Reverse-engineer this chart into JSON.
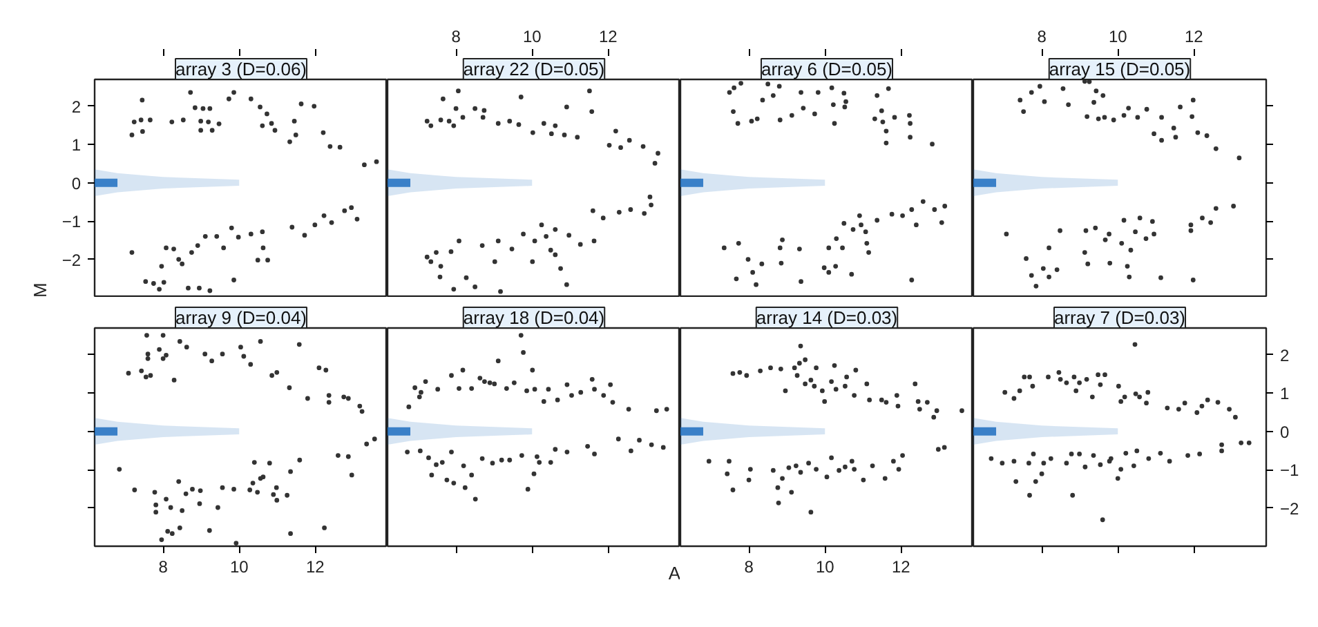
{
  "chart_data": [
    {
      "type": "scatter",
      "title": "array 3 (D=0.06)",
      "ylabel": "M",
      "xlim": [
        6.2,
        13.9
      ],
      "ylim": [
        -3,
        2.7
      ],
      "xticks": [
        8,
        10,
        12
      ],
      "yticks": [
        -2,
        -1,
        0,
        1,
        2
      ],
      "tick_labels": "y",
      "series": [
        {
          "type": "line",
          "marker": "none",
          "color": "#1f6fbf",
          "x": [
            6.2,
            6.8,
            8,
            10
          ],
          "values": [
            0,
            0,
            null,
            null
          ],
          "lower": [
            -0.35,
            -0.25,
            -0.15,
            -0.08
          ],
          "upper": [
            0.35,
            0.25,
            0.15,
            0.08
          ]
        },
        {
          "marker": "circle",
          "color": "#333333",
          "x": [
            7.18,
            7.24,
            7.45,
            7.42,
            7.66,
            7.46,
            8.23,
            8.53,
            8.72,
            8.84,
            9.05,
            9.23,
            8.99,
            9.19,
            8.99,
            9.29,
            9.47,
            9.73,
            9.86,
            10.31,
            10.55,
            10.73,
            10.61,
            10.85,
            10.94,
            11.45,
            11.63,
            11.97,
            11.49,
            11.33,
            12.21,
            12.39,
            12.65,
            13.29,
            13.61,
            7.18,
            7.96,
            8.08,
            8.28,
            8.41,
            8.5,
            7.54,
            7.75,
            8.02,
            7.9,
            8.66,
            8.95,
            9.23,
            8.75,
            8.91,
            9.11,
            9.41,
            9.59,
            9.8,
            9.98,
            10.31,
            10.61,
            10.63,
            10.49,
            10.75,
            9.86,
            11.39,
            11.72,
            11.99,
            12.23,
            12.43,
            12.77,
            13.1,
            12.95
          ],
          "values": [
            1.25,
            1.59,
            2.16,
            1.64,
            1.64,
            1.34,
            1.59,
            1.64,
            2.36,
            1.96,
            1.94,
            1.94,
            1.61,
            1.59,
            1.37,
            1.37,
            1.54,
            2.19,
            2.36,
            2.19,
            1.98,
            1.8,
            1.49,
            1.55,
            1.37,
            1.61,
            2.06,
            2.0,
            1.25,
            1.07,
            1.31,
            0.95,
            0.93,
            0.47,
            0.55,
            -1.82,
            -2.18,
            -1.7,
            -1.73,
            -2.0,
            -2.12,
            -2.58,
            -2.63,
            -2.6,
            -2.78,
            -2.75,
            -2.75,
            -2.82,
            -1.82,
            -1.64,
            -1.4,
            -1.4,
            -1.7,
            -1.18,
            -1.42,
            -1.34,
            -1.28,
            -1.7,
            -2.02,
            -2.02,
            -2.54,
            -1.16,
            -1.37,
            -1.1,
            -0.86,
            -1.04,
            -0.73,
            -0.95,
            -0.65
          ]
        }
      ]
    },
    {
      "type": "scatter",
      "title": "array 22 (D=0.05)",
      "xlim": [
        6.2,
        13.9
      ],
      "ylim": [
        -3,
        2.7
      ],
      "xticks": [
        8,
        10,
        12
      ],
      "yticks": [
        -2,
        -1,
        0,
        1,
        2
      ],
      "tick_labels": "x",
      "series": [
        {
          "type": "line",
          "marker": "none",
          "color": "#1f6fbf",
          "x": [
            6.2,
            6.8,
            8,
            10
          ],
          "values": [
            0,
            0,
            null,
            null
          ],
          "lower": [
            -0.35,
            -0.25,
            -0.15,
            -0.08
          ],
          "upper": [
            0.35,
            0.25,
            0.15,
            0.08
          ]
        },
        {
          "marker": "circle",
          "color": "#333333",
          "x": [
            7.24,
            7.34,
            7.6,
            7.66,
            7.82,
            7.94,
            8.06,
            8.0,
            8.18,
            8.5,
            8.71,
            8.74,
            9.11,
            9.41,
            9.65,
            9.71,
            10.02,
            10.31,
            10.51,
            10.61,
            10.91,
            10.85,
            11.19,
            11.51,
            11.57,
            12.03,
            12.2,
            12.33,
            12.56,
            12.92,
            13.31,
            13.23,
            7.24,
            7.34,
            7.48,
            7.6,
            7.87,
            8.08,
            7.58,
            7.94,
            8.27,
            8.5,
            8.69,
            9.02,
            9.11,
            9.17,
            9.47,
            9.77,
            10.01,
            10.07,
            10.25,
            10.37,
            10.49,
            10.61,
            10.75,
            10.91,
            10.61,
            10.97,
            11.27,
            11.63,
            11.6,
            11.87,
            12.29,
            12.59,
            12.95,
            13.13,
            13.1
          ],
          "values": [
            1.61,
            1.49,
            1.64,
            2.19,
            1.61,
            1.49,
            2.4,
            1.94,
            1.71,
            1.94,
            1.71,
            1.89,
            1.55,
            1.61,
            1.52,
            2.24,
            1.31,
            1.55,
            1.28,
            1.49,
            1.98,
            1.25,
            1.19,
            2.4,
            1.86,
            0.98,
            1.35,
            0.92,
            1.11,
            0.95,
            0.77,
            0.51,
            -1.94,
            -2.06,
            -1.82,
            -2.18,
            -1.8,
            -1.52,
            -2.46,
            -2.78,
            -2.48,
            -2.72,
            -1.64,
            -2.06,
            -1.52,
            -2.84,
            -1.73,
            -1.34,
            -2.06,
            -1.52,
            -1.1,
            -1.4,
            -1.76,
            -1.88,
            -2.24,
            -2.66,
            -1.22,
            -1.37,
            -1.61,
            -1.52,
            -0.73,
            -0.92,
            -0.77,
            -0.7,
            -0.8,
            -0.58,
            -0.37
          ]
        }
      ]
    },
    {
      "type": "scatter",
      "title": "array 6 (D=0.05)",
      "xlim": [
        6.2,
        13.9
      ],
      "ylim": [
        -3,
        2.7
      ],
      "xticks": [
        8,
        10,
        12
      ],
      "yticks": [
        -2,
        -1,
        0,
        1,
        2
      ],
      "tick_labels": false,
      "series": [
        {
          "type": "line",
          "marker": "none",
          "color": "#1f6fbf",
          "x": [
            6.2,
            6.8,
            8,
            10
          ],
          "values": [
            0,
            0,
            null,
            null
          ],
          "lower": [
            -0.35,
            -0.25,
            -0.15,
            -0.08
          ],
          "upper": [
            0.35,
            0.25,
            0.15,
            0.08
          ]
        },
        {
          "marker": "circle",
          "color": "#333333",
          "x": [
            7.49,
            7.61,
            7.79,
            7.59,
            7.71,
            8.07,
            8.22,
            8.36,
            8.5,
            8.64,
            8.8,
            8.82,
            9.13,
            9.37,
            9.43,
            9.73,
            9.82,
            10.22,
            10.18,
            10.5,
            10.52,
            10.55,
            10.25,
            11.37,
            11.31,
            11.49,
            11.52,
            11.61,
            11.61,
            11.83,
            12.22,
            12.24,
            12.24,
            12.82,
            11.67,
            7.35,
            7.73,
            7.98,
            8.1,
            8.34,
            7.67,
            8.19,
            8.82,
            8.85,
            8.88,
            9.33,
            9.37,
            9.98,
            10.1,
            10.28,
            10.1,
            10.3,
            10.5,
            10.46,
            10.7,
            10.74,
            10.91,
            10.95,
            11.07,
            11.1,
            11.15,
            11.37,
            11.76,
            12.04,
            12.28,
            12.58,
            12.88,
            13.15,
            13.07,
            12.4,
            12.28
          ],
          "values": [
            2.36,
            2.48,
            2.6,
            1.86,
            1.55,
            1.61,
            1.67,
            2.16,
            2.58,
            2.28,
            2.52,
            1.64,
            1.76,
            2.36,
            1.95,
            1.8,
            2.36,
            2.04,
            2.48,
            2.34,
            1.98,
            2.12,
            1.55,
            2.28,
            1.67,
            1.88,
            1.59,
            1.35,
            1.04,
            1.71,
            1.76,
            1.55,
            1.19,
            1.01,
            2.46,
            -1.7,
            -1.58,
            -2.0,
            -2.34,
            -2.12,
            -2.51,
            -2.66,
            -1.7,
            -2.1,
            -1.49,
            -1.73,
            -2.58,
            -2.22,
            -2.34,
            -2.18,
            -1.7,
            -1.46,
            -1.06,
            -1.7,
            -2.39,
            -1.22,
            -0.86,
            -1.1,
            -1.28,
            -1.58,
            -1.82,
            -0.98,
            -0.82,
            -0.86,
            -0.7,
            -0.49,
            -0.7,
            -0.61,
            -1.04,
            -1.1,
            -2.54
          ]
        }
      ]
    },
    {
      "type": "scatter",
      "title": "array 15 (D=0.05)",
      "xlim": [
        6.2,
        13.9
      ],
      "ylim": [
        -3,
        2.7
      ],
      "xticks": [
        8,
        10,
        12
      ],
      "yticks": [
        -2,
        -1,
        0,
        1,
        2
      ],
      "tick_labels": "x",
      "series": [
        {
          "type": "line",
          "marker": "none",
          "color": "#1f6fbf",
          "x": [
            6.2,
            6.8,
            8,
            10
          ],
          "values": [
            0,
            0,
            null,
            null
          ],
          "lower": [
            -0.35,
            -0.25,
            -0.15,
            -0.08
          ],
          "upper": [
            0.35,
            0.25,
            0.15,
            0.08
          ]
        },
        {
          "marker": "circle",
          "color": "#333333",
          "x": [
            7.43,
            7.52,
            7.73,
            7.95,
            8.07,
            8.56,
            8.7,
            9.13,
            9.25,
            9.43,
            9.61,
            9.37,
            9.19,
            9.49,
            9.65,
            9.89,
            10.16,
            10.28,
            10.52,
            10.76,
            10.95,
            11.15,
            11.15,
            11.47,
            11.52,
            11.64,
            11.95,
            11.98,
            12.1,
            12.34,
            12.58,
            13.19,
            7.07,
            7.59,
            7.73,
            7.85,
            8.04,
            8.19,
            8.19,
            8.4,
            8.48,
            9.13,
            9.16,
            9.21,
            9.41,
            9.67,
            9.77,
            9.79,
            10.1,
            10.16,
            10.25,
            10.3,
            10.34,
            10.46,
            10.58,
            10.74,
            10.91,
            10.95,
            11.13,
            11.92,
            11.92,
            12.22,
            12.44,
            12.58,
            13.04,
            11.98
          ],
          "values": [
            2.16,
            1.86,
            2.36,
            2.52,
            2.12,
            2.46,
            2.04,
            2.65,
            2.64,
            2.4,
            2.28,
            2.1,
            1.73,
            1.67,
            1.71,
            1.64,
            1.76,
            1.95,
            1.71,
            1.92,
            1.28,
            1.71,
            1.11,
            1.43,
            1.19,
            1.98,
            1.73,
            2.16,
            1.31,
            1.23,
            0.89,
            0.65,
            -1.34,
            -1.98,
            -2.42,
            -2.7,
            -2.24,
            -1.7,
            -2.46,
            -2.27,
            -1.25,
            -1.82,
            -1.25,
            -2.12,
            -1.18,
            -1.49,
            -1.34,
            -2.1,
            -1.58,
            -0.98,
            -2.18,
            -2.46,
            -1.76,
            -1.28,
            -0.92,
            -1.46,
            -1.01,
            -1.34,
            -2.48,
            -1.1,
            -1.25,
            -0.92,
            -1.04,
            -0.67,
            -0.61,
            -2.54
          ]
        }
      ]
    },
    {
      "type": "scatter",
      "title": "array 9 (D=0.04)",
      "xlim": [
        6.2,
        13.9
      ],
      "ylim": [
        -3,
        2.7
      ],
      "xticks": [
        8,
        10,
        12
      ],
      "yticks": [
        -2,
        -1,
        0,
        1,
        2
      ],
      "tick_labels": "x",
      "series": [
        {
          "type": "line",
          "marker": "none",
          "color": "#1f6fbf",
          "x": [
            6.2,
            6.8,
            8,
            10
          ],
          "values": [
            0,
            0,
            null,
            null
          ],
          "lower": [
            -0.35,
            -0.25,
            -0.15,
            -0.08
          ],
          "upper": [
            0.35,
            0.25,
            0.15,
            0.08
          ]
        },
        {
          "marker": "circle",
          "color": "#333333",
          "x": [
            7.09,
            7.43,
            7.55,
            7.67,
            7.57,
            7.6,
            7.6,
            7.9,
            8.0,
            8.08,
            8.0,
            8.29,
            8.44,
            8.62,
            9.1,
            9.28,
            9.56,
            10.04,
            10.12,
            10.3,
            10.56,
            10.86,
            10.99,
            11.32,
            11.58,
            11.8,
            12.1,
            12.28,
            12.36,
            12.36,
            12.75,
            12.87,
            13.17,
            13.23,
            6.85,
            7.25,
            7.78,
            7.81,
            7.81,
            8.08,
            8.2,
            8.41,
            8.5,
            8.6,
            8.77,
            8.98,
            8.96,
            9.44,
            9.56,
            9.86,
            10.28,
            10.4,
            10.36,
            10.56,
            10.63,
            10.48,
            10.8,
            10.9,
            10.98,
            10.99,
            11.26,
            11.35,
            11.59,
            7.96,
            8.12,
            8.24,
            8.44,
            9.22,
            9.92,
            11.35,
            12.24,
            12.6,
            12.87,
            12.96,
            13.35,
            13.56
          ],
          "values": [
            1.52,
            1.58,
            1.42,
            1.46,
            2.51,
            2.02,
            1.9,
            2.14,
            2.51,
            1.99,
            1.9,
            1.34,
            2.35,
            2.2,
            2.02,
            1.84,
            2.02,
            2.2,
            1.96,
            1.75,
            2.35,
            1.46,
            1.54,
            1.14,
            2.27,
            0.86,
            1.66,
            1.6,
            0.94,
            0.76,
            0.9,
            0.86,
            0.66,
            0.52,
            -0.99,
            -1.53,
            -1.59,
            -1.92,
            -2.11,
            -1.77,
            -1.99,
            -1.31,
            -2.07,
            -1.63,
            -1.51,
            -1.55,
            -1.89,
            -1.99,
            -1.47,
            -1.51,
            -1.53,
            -0.81,
            -1.35,
            -1.23,
            -1.19,
            -1.59,
            -0.83,
            -1.65,
            -1.47,
            -1.8,
            -1.67,
            -1.05,
            -0.75,
            -2.83,
            -2.61,
            -2.67,
            -2.52,
            -2.59,
            -2.92,
            -2.67,
            -2.52,
            -0.63,
            -0.66,
            -1.14,
            -0.33,
            -0.2
          ]
        }
      ]
    },
    {
      "type": "scatter",
      "title": "array 18 (D=0.04)",
      "xlabel": "A",
      "xlim": [
        6.2,
        13.9
      ],
      "ylim": [
        -3,
        2.7
      ],
      "xticks": [
        8,
        10,
        12
      ],
      "yticks": [
        -2,
        -1,
        0,
        1,
        2
      ],
      "tick_labels": false,
      "series": [
        {
          "type": "line",
          "marker": "none",
          "color": "#1f6fbf",
          "x": [
            6.2,
            6.8,
            8,
            10
          ],
          "values": [
            0,
            0,
            null,
            null
          ],
          "lower": [
            -0.35,
            -0.25,
            -0.15,
            -0.08
          ],
          "upper": [
            0.35,
            0.25,
            0.15,
            0.08
          ]
        },
        {
          "marker": "circle",
          "color": "#333333",
          "x": [
            6.76,
            6.92,
            7.04,
            7.08,
            7.2,
            7.52,
            7.88,
            8.08,
            8.18,
            8.41,
            8.63,
            8.75,
            8.89,
            9.11,
            9.01,
            9.33,
            9.53,
            9.77,
            9.86,
            10.01,
            10.07,
            10.31,
            10.43,
            10.67,
            10.92,
            11.04,
            11.28,
            11.58,
            11.64,
            11.88,
            12.06,
            12.12,
            12.54,
            13.27,
            13.54,
            9.71,
            6.72,
            7.06,
            7.28,
            7.36,
            7.48,
            7.64,
            7.76,
            7.88,
            7.94,
            8.2,
            8.24,
            8.41,
            8.51,
            8.69,
            8.96,
            9.2,
            9.41,
            9.73,
            9.89,
            10.05,
            10.13,
            10.19,
            10.49,
            10.61,
            10.92,
            11.46,
            11.64,
            12.27,
            12.6,
            12.82,
            13.14,
            13.45
          ],
          "values": [
            0.64,
            1.14,
            0.9,
            1.02,
            1.3,
            1.1,
            1.46,
            1.12,
            1.6,
            1.12,
            1.39,
            1.3,
            1.27,
            1.84,
            1.24,
            1.12,
            1.27,
            2.06,
            1.06,
            1.6,
            1.1,
            0.78,
            1.1,
            0.82,
            1.22,
            0.94,
            1.02,
            1.36,
            1.1,
            0.94,
            1.22,
            0.76,
            0.58,
            0.54,
            0.58,
            2.51,
            -0.54,
            -0.51,
            -0.69,
            -1.14,
            -0.87,
            -0.81,
            -1.27,
            -0.54,
            -1.35,
            -0.9,
            -1.47,
            -1.14,
            -1.77,
            -0.71,
            -0.83,
            -0.75,
            -0.75,
            -0.63,
            -1.51,
            -1.11,
            -0.66,
            -0.81,
            -0.81,
            -0.47,
            -0.54,
            -0.39,
            -0.59,
            -0.2,
            -0.51,
            -0.23,
            -0.35,
            -0.42
          ]
        }
      ]
    },
    {
      "type": "scatter",
      "title": "array 14 (D=0.03)",
      "xlim": [
        6.2,
        13.9
      ],
      "ylim": [
        -3,
        2.7
      ],
      "xticks": [
        8,
        10,
        12
      ],
      "yticks": [
        -2,
        -1,
        0,
        1,
        2
      ],
      "tick_labels": "x",
      "series": [
        {
          "type": "line",
          "marker": "none",
          "color": "#1f6fbf",
          "x": [
            6.2,
            6.8,
            8,
            10
          ],
          "values": [
            0,
            0,
            null,
            null
          ],
          "lower": [
            -0.35,
            -0.25,
            -0.15,
            -0.08
          ],
          "upper": [
            0.35,
            0.25,
            0.15,
            0.08
          ]
        },
        {
          "marker": "circle",
          "color": "#333333",
          "x": [
            7.58,
            7.76,
            7.94,
            8.3,
            8.57,
            8.84,
            8.96,
            9.2,
            9.27,
            9.36,
            9.33,
            9.48,
            9.48,
            9.63,
            9.72,
            9.77,
            9.93,
            9.99,
            10.17,
            10.25,
            10.29,
            10.53,
            10.57,
            10.77,
            10.81,
            11.1,
            11.17,
            11.49,
            11.61,
            11.89,
            11.92,
            12.37,
            12.45,
            12.49,
            12.69,
            12.86,
            12.94,
            13.6,
            6.95,
            7.43,
            7.48,
            7.58,
            8.04,
            8.0,
            8.64,
            8.76,
            8.78,
            8.88,
            9.05,
            9.12,
            9.24,
            9.36,
            9.57,
            9.63,
            9.77,
            10.05,
            10.17,
            10.37,
            10.53,
            10.71,
            10.77,
            11.01,
            11.25,
            11.58,
            11.8,
            11.94,
            12.04,
            12.98,
            13.14
          ],
          "values": [
            1.51,
            1.54,
            1.46,
            1.58,
            1.66,
            1.63,
            1.06,
            1.66,
            1.46,
            2.23,
            1.78,
            1.87,
            1.24,
            1.34,
            1.18,
            1.66,
            1.06,
            0.78,
            1.3,
            1.72,
            1.1,
            1.18,
            1.42,
            0.94,
            1.6,
            1.24,
            0.82,
            0.82,
            0.76,
            0.94,
            0.66,
            1.24,
            0.78,
            0.58,
            0.76,
            0.37,
            0.54,
            0.54,
            -0.78,
            -1.11,
            -0.78,
            -1.53,
            -0.99,
            -1.27,
            -1.02,
            -1.47,
            -1.87,
            -1.23,
            -0.95,
            -1.59,
            -0.9,
            -1.07,
            -0.83,
            -2.11,
            -0.99,
            -1.19,
            -0.69,
            -1.02,
            -0.93,
            -0.78,
            -0.99,
            -1.27,
            -0.9,
            -1.23,
            -0.78,
            -0.99,
            -0.63,
            -0.47,
            -0.42
          ]
        }
      ]
    },
    {
      "type": "scatter",
      "title": "array 7 (D=0.03)",
      "xlim": [
        6.2,
        13.9
      ],
      "ylim": [
        -3,
        2.7
      ],
      "xticks": [
        8,
        10,
        12
      ],
      "yticks": [
        -2,
        -1,
        0,
        1,
        2
      ],
      "tick_labels": "y",
      "series": [
        {
          "type": "line",
          "marker": "none",
          "color": "#1f6fbf",
          "x": [
            6.2,
            6.8,
            8,
            10
          ],
          "values": [
            0,
            0,
            null,
            null
          ],
          "lower": [
            -0.35,
            -0.25,
            -0.15,
            -0.08
          ],
          "upper": [
            0.35,
            0.25,
            0.15,
            0.08
          ]
        },
        {
          "marker": "circle",
          "color": "#333333",
          "x": [
            7.03,
            7.27,
            7.42,
            7.54,
            7.68,
            7.76,
            8.17,
            8.45,
            8.49,
            8.65,
            8.85,
            8.9,
            8.99,
            9.18,
            9.33,
            9.48,
            9.54,
            9.66,
            10.02,
            10.08,
            10.18,
            10.45,
            10.47,
            10.57,
            10.75,
            10.79,
            11.3,
            11.6,
            11.76,
            12.08,
            12.21,
            12.36,
            12.63,
            12.93,
            13.09,
            6.67,
            6.96,
            7.27,
            7.32,
            7.66,
            7.68,
            7.78,
            7.84,
            8.0,
            8.05,
            8.24,
            8.65,
            8.81,
            8.78,
            8.99,
            9.14,
            9.36,
            9.54,
            9.78,
            9.82,
            9.6,
            10.0,
            10.08,
            10.21,
            10.42,
            10.5,
            10.81,
            11.12,
            11.36,
            11.84,
            12.15,
            12.73,
            12.73,
            13.24,
            13.45
          ],
          "values": [
            1.02,
            0.86,
            1.06,
            1.42,
            1.42,
            1.18,
            1.42,
            1.54,
            1.36,
            1.27,
            1.42,
            1.06,
            1.27,
            1.36,
            0.9,
            1.48,
            1.22,
            1.48,
            1.18,
            0.78,
            0.9,
            2.27,
            0.98,
            0.9,
            0.74,
            1.02,
            0.61,
            0.58,
            0.74,
            0.49,
            0.66,
            0.82,
            0.76,
            0.58,
            0.37,
            -0.71,
            -0.83,
            -0.78,
            -1.31,
            -0.83,
            -1.67,
            -0.59,
            -1.31,
            -1.11,
            -0.83,
            -0.71,
            -0.83,
            -1.67,
            -0.59,
            -0.59,
            -0.93,
            -0.63,
            -0.87,
            -0.78,
            -0.71,
            -2.31,
            -1.23,
            -0.99,
            -0.57,
            -0.9,
            -0.51,
            -0.71,
            -0.57,
            -0.78,
            -0.63,
            -0.59,
            -0.35,
            -0.51,
            -0.3,
            -0.3
          ]
        }
      ]
    }
  ]
}
